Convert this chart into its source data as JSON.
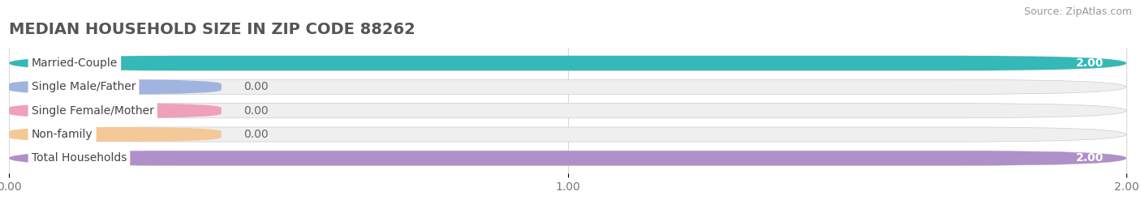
{
  "title": "MEDIAN HOUSEHOLD SIZE IN ZIP CODE 88262",
  "source": "Source: ZipAtlas.com",
  "categories": [
    "Married-Couple",
    "Single Male/Father",
    "Single Female/Mother",
    "Non-family",
    "Total Households"
  ],
  "values": [
    2.0,
    0.0,
    0.0,
    0.0,
    2.0
  ],
  "bar_colors": [
    "#35b8b8",
    "#a0b4e0",
    "#f0a0b8",
    "#f5c898",
    "#b090c8"
  ],
  "bar_bg_color": "#efefef",
  "xlim": [
    0,
    2.0
  ],
  "xticks": [
    0.0,
    1.0,
    2.0
  ],
  "xtick_labels": [
    "0.00",
    "1.00",
    "2.00"
  ],
  "title_fontsize": 14,
  "source_fontsize": 9,
  "label_fontsize": 10,
  "value_fontsize": 10,
  "figsize": [
    14.06,
    2.68
  ],
  "dpi": 100,
  "bg_color": "#ffffff",
  "bar_height": 0.62,
  "grid_color": "#d8d8d8",
  "zero_bar_width": 0.38
}
